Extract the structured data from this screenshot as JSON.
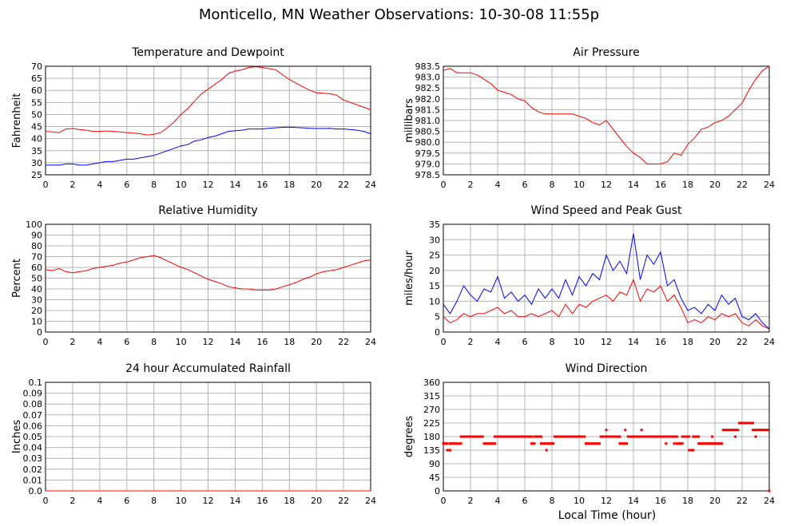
{
  "page": {
    "title": "Monticello, MN Weather Observations: 10-30-08 11:55p",
    "xlabel_shared": "Local Time (hour)"
  },
  "chart_data": [
    {
      "type": "line",
      "title": "Temperature and Dewpoint",
      "xlabel": "",
      "ylabel": "Fahrenheit",
      "xlim": [
        0,
        24
      ],
      "ylim": [
        25,
        70
      ],
      "xticks": [
        0,
        2,
        4,
        6,
        8,
        10,
        12,
        14,
        16,
        18,
        20,
        22,
        24
      ],
      "yticks": [
        25,
        30,
        35,
        40,
        45,
        50,
        55,
        60,
        65,
        70
      ],
      "ytick_labels": [
        "25",
        "30",
        "35",
        "40",
        "45",
        "50",
        "55",
        "60",
        "65",
        "70"
      ],
      "grid": true,
      "series": [
        {
          "color": "#ff0000",
          "x": [
            0,
            0.5,
            1,
            1.5,
            2,
            2.5,
            3,
            3.5,
            4,
            4.5,
            5,
            5.5,
            6,
            6.5,
            7,
            7.5,
            8,
            8.5,
            9,
            9.5,
            10,
            10.5,
            11,
            11.5,
            12,
            12.5,
            13,
            13.5,
            14,
            14.5,
            15,
            15.5,
            16,
            16.5,
            17,
            17.5,
            18,
            18.5,
            19,
            19.5,
            20,
            20.5,
            21,
            21.5,
            22,
            22.5,
            23,
            23.5,
            24
          ],
          "y": [
            43,
            42.8,
            42.5,
            44,
            44.2,
            43.8,
            43.5,
            43,
            43,
            43.2,
            43,
            42.8,
            42.5,
            42.3,
            42,
            41.5,
            41.8,
            42.5,
            44.5,
            47,
            50,
            52.5,
            55.5,
            58.5,
            60.5,
            62.5,
            64.5,
            67,
            68,
            68.5,
            69.5,
            69.8,
            69.5,
            69,
            68.5,
            66.5,
            64.5,
            63,
            61.5,
            60,
            59,
            58.8,
            58.6,
            58,
            56,
            55,
            54,
            53,
            52
          ]
        },
        {
          "color": "#0000ff",
          "x": [
            0,
            0.5,
            1,
            1.5,
            2,
            2.5,
            3,
            3.5,
            4,
            4.5,
            5,
            5.5,
            6,
            6.5,
            7,
            7.5,
            8,
            8.5,
            9,
            9.5,
            10,
            10.5,
            11,
            11.5,
            12,
            12.5,
            13,
            13.5,
            14,
            14.5,
            15,
            15.5,
            16,
            16.5,
            17,
            17.5,
            18,
            18.5,
            19,
            19.5,
            20,
            20.5,
            21,
            21.5,
            22,
            22.5,
            23,
            23.5,
            24
          ],
          "y": [
            29,
            29,
            29,
            29.5,
            29.5,
            29,
            29,
            29.5,
            30,
            30.5,
            30.5,
            31,
            31.5,
            31.5,
            32,
            32.5,
            33,
            34,
            35,
            36,
            37,
            37.5,
            39,
            39.5,
            40.5,
            41,
            42,
            43,
            43.3,
            43.5,
            44,
            44,
            44,
            44.3,
            44.5,
            44.7,
            44.8,
            44.6,
            44.5,
            44.3,
            44.2,
            44.2,
            44.3,
            44,
            44,
            43.8,
            43.5,
            43,
            42
          ]
        }
      ]
    },
    {
      "type": "line",
      "title": "Air Pressure",
      "xlabel": "",
      "ylabel": "millibars",
      "xlim": [
        0,
        24
      ],
      "ylim": [
        978.5,
        983.5
      ],
      "xticks": [
        0,
        2,
        4,
        6,
        8,
        10,
        12,
        14,
        16,
        18,
        20,
        22,
        24
      ],
      "yticks": [
        978.5,
        979.0,
        979.5,
        980.0,
        980.5,
        981.0,
        981.5,
        982.0,
        982.5,
        983.0,
        983.5
      ],
      "ytick_labels": [
        "978.5",
        "979.0",
        "979.5",
        "980.0",
        "980.5",
        "981.0",
        "981.5",
        "982.0",
        "982.5",
        "983.0",
        "983.5"
      ],
      "grid": true,
      "series": [
        {
          "color": "#ff0000",
          "x": [
            0,
            0.5,
            1,
            1.5,
            2,
            2.5,
            3,
            3.5,
            4,
            4.5,
            5,
            5.5,
            6,
            6.5,
            7,
            7.5,
            8,
            8.5,
            9,
            9.5,
            10,
            10.5,
            11,
            11.5,
            12,
            12.5,
            13,
            13.5,
            14,
            14.5,
            15,
            15.5,
            16,
            16.5,
            17,
            17.5,
            18,
            18.5,
            19,
            19.5,
            20,
            20.5,
            21,
            21.5,
            22,
            22.5,
            23,
            23.5,
            24
          ],
          "y": [
            983.3,
            983.4,
            983.2,
            983.2,
            983.2,
            983.1,
            982.9,
            982.7,
            982.4,
            982.3,
            982.2,
            982.0,
            981.9,
            981.6,
            981.4,
            981.3,
            981.3,
            981.3,
            981.3,
            981.3,
            981.2,
            981.1,
            980.9,
            980.8,
            981.0,
            980.6,
            980.2,
            979.8,
            979.5,
            979.3,
            979.0,
            979.0,
            979.0,
            979.1,
            979.5,
            979.4,
            979.9,
            980.2,
            980.6,
            980.7,
            980.9,
            981.0,
            981.2,
            981.5,
            981.8,
            982.4,
            982.9,
            983.3,
            983.5
          ]
        }
      ]
    },
    {
      "type": "line",
      "title": "Relative Humidity",
      "xlabel": "",
      "ylabel": "Percent",
      "xlim": [
        0,
        24
      ],
      "ylim": [
        0,
        100
      ],
      "xticks": [
        0,
        2,
        4,
        6,
        8,
        10,
        12,
        14,
        16,
        18,
        20,
        22,
        24
      ],
      "yticks": [
        0,
        10,
        20,
        30,
        40,
        50,
        60,
        70,
        80,
        90,
        100
      ],
      "ytick_labels": [
        "0",
        "10",
        "20",
        "30",
        "40",
        "50",
        "60",
        "70",
        "80",
        "90",
        "100"
      ],
      "grid": true,
      "series": [
        {
          "color": "#ff0000",
          "x": [
            0,
            0.5,
            1,
            1.5,
            2,
            2.5,
            3,
            3.5,
            4,
            4.5,
            5,
            5.5,
            6,
            6.5,
            7,
            7.5,
            8,
            8.5,
            9,
            9.5,
            10,
            10.5,
            11,
            11.5,
            12,
            12.5,
            13,
            13.5,
            14,
            14.5,
            15,
            15.5,
            16,
            16.5,
            17,
            17.5,
            18,
            18.5,
            19,
            19.5,
            20,
            20.5,
            21,
            21.5,
            22,
            22.5,
            23,
            23.5,
            24
          ],
          "y": [
            58,
            57,
            59,
            56,
            55,
            56,
            57,
            59,
            60,
            61,
            62,
            64,
            65,
            67,
            69,
            70,
            71,
            69,
            66,
            63,
            60,
            58,
            55,
            52,
            49,
            47,
            45,
            42,
            41,
            40,
            40,
            39,
            39,
            39,
            40,
            42,
            44,
            46,
            49,
            51,
            54,
            56,
            57,
            58,
            60,
            62,
            64,
            66,
            67
          ]
        }
      ]
    },
    {
      "type": "line",
      "title": "Wind Speed and Peak Gust",
      "xlabel": "",
      "ylabel": "miles/hour",
      "xlim": [
        0,
        24
      ],
      "ylim": [
        0,
        35
      ],
      "xticks": [
        0,
        2,
        4,
        6,
        8,
        10,
        12,
        14,
        16,
        18,
        20,
        22,
        24
      ],
      "yticks": [
        0,
        5,
        10,
        15,
        20,
        25,
        30,
        35
      ],
      "ytick_labels": [
        "0",
        "5",
        "10",
        "15",
        "20",
        "25",
        "30",
        "35"
      ],
      "grid": true,
      "series": [
        {
          "color": "#ff0000",
          "x": [
            0,
            0.5,
            1,
            1.5,
            2,
            2.5,
            3,
            3.5,
            4,
            4.5,
            5,
            5.5,
            6,
            6.5,
            7,
            7.5,
            8,
            8.5,
            9,
            9.5,
            10,
            10.5,
            11,
            11.5,
            12,
            12.5,
            13,
            13.5,
            14,
            14.5,
            15,
            15.5,
            16,
            16.5,
            17,
            17.5,
            18,
            18.5,
            19,
            19.5,
            20,
            20.5,
            21,
            21.5,
            22,
            22.5,
            23,
            23.5,
            24
          ],
          "y": [
            5,
            3,
            4,
            6,
            5,
            6,
            6,
            7,
            8,
            6,
            7,
            5,
            5,
            6,
            5,
            6,
            7,
            5,
            9,
            6,
            9,
            8,
            10,
            11,
            12,
            10,
            13,
            12,
            17,
            10,
            14,
            13,
            15,
            10,
            12,
            8,
            3,
            4,
            3,
            5,
            4,
            6,
            5,
            6,
            3,
            2,
            4,
            2,
            1
          ]
        },
        {
          "color": "#0000ff",
          "x": [
            0,
            0.5,
            1,
            1.5,
            2,
            2.5,
            3,
            3.5,
            4,
            4.5,
            5,
            5.5,
            6,
            6.5,
            7,
            7.5,
            8,
            8.5,
            9,
            9.5,
            10,
            10.5,
            11,
            11.5,
            12,
            12.5,
            13,
            13.5,
            14,
            14.5,
            15,
            15.5,
            16,
            16.5,
            17,
            17.5,
            18,
            18.5,
            19,
            19.5,
            20,
            20.5,
            21,
            21.5,
            22,
            22.5,
            23,
            23.5,
            24
          ],
          "y": [
            9,
            6,
            10,
            15,
            12,
            10,
            14,
            13,
            18,
            11,
            13,
            10,
            12,
            9,
            14,
            11,
            14,
            11,
            17,
            12,
            18,
            15,
            19,
            17,
            25,
            20,
            23,
            19,
            32,
            17,
            25,
            22,
            26,
            15,
            17,
            11,
            7,
            8,
            6,
            9,
            7,
            12,
            9,
            11,
            5,
            4,
            6,
            3,
            1
          ]
        }
      ]
    },
    {
      "type": "line",
      "title": "24 hour Accumulated Rainfall",
      "xlabel": "",
      "ylabel": "Inches",
      "xlim": [
        0,
        24
      ],
      "ylim": [
        0,
        0.1
      ],
      "xticks": [
        0,
        2,
        4,
        6,
        8,
        10,
        12,
        14,
        16,
        18,
        20,
        22,
        24
      ],
      "yticks": [
        0,
        0.01,
        0.02,
        0.03,
        0.04,
        0.05,
        0.06,
        0.07,
        0.08,
        0.09,
        0.1
      ],
      "ytick_labels": [
        "0.0",
        "0.01",
        "0.02",
        "0.03",
        "0.04",
        "0.05",
        "0.06",
        "0.07",
        "0.08",
        "0.09",
        "0.1"
      ],
      "grid": true,
      "series": [
        {
          "color": "#ff0000",
          "x": [
            0,
            24
          ],
          "y": [
            0,
            0
          ]
        }
      ]
    },
    {
      "type": "scatter",
      "title": "Wind Direction",
      "xlabel": "",
      "ylabel": "degrees",
      "xlim": [
        0,
        24
      ],
      "ylim": [
        0,
        360
      ],
      "xticks": [
        0,
        2,
        4,
        6,
        8,
        10,
        12,
        14,
        16,
        18,
        20,
        22,
        24
      ],
      "yticks": [
        0,
        45,
        90,
        135,
        180,
        225,
        270,
        315,
        360
      ],
      "ytick_labels": [
        "0",
        "45",
        "90",
        "135",
        "180",
        "225",
        "270",
        "315",
        "360"
      ],
      "grid": true,
      "series": [
        {
          "color": "#ff0000",
          "segments": [
            [
              0.0,
              0.3,
              157
            ],
            [
              0.3,
              0.5,
              135
            ],
            [
              0.5,
              1.3,
              157
            ],
            [
              1.4,
              2.9,
              180
            ],
            [
              3.0,
              3.8,
              157
            ],
            [
              3.8,
              6.5,
              180
            ],
            [
              6.5,
              6.7,
              157
            ],
            [
              6.7,
              7.2,
              180
            ],
            [
              7.2,
              8.1,
              157
            ],
            [
              8.2,
              10.4,
              180
            ],
            [
              10.5,
              11.5,
              157
            ],
            [
              11.6,
              13.0,
              180
            ],
            [
              13.0,
              13.5,
              157
            ],
            [
              13.6,
              17.2,
              180
            ],
            [
              17.2,
              17.6,
              157
            ],
            [
              17.6,
              18.1,
              180
            ],
            [
              18.1,
              18.4,
              135
            ],
            [
              18.4,
              18.8,
              180
            ],
            [
              18.8,
              20.5,
              157
            ],
            [
              20.6,
              21.7,
              202
            ],
            [
              21.8,
              22.8,
              225
            ],
            [
              22.8,
              23.9,
              202
            ],
            [
              24.0,
              24.0,
              0
            ]
          ],
          "singles": [
            [
              1.3,
              180
            ],
            [
              7.6,
              135
            ],
            [
              12.0,
              202
            ],
            [
              13.4,
              202
            ],
            [
              14.6,
              202
            ],
            [
              16.4,
              157
            ],
            [
              17.0,
              157
            ],
            [
              19.8,
              180
            ],
            [
              21.5,
              180
            ],
            [
              23.0,
              180
            ]
          ]
        }
      ]
    }
  ]
}
